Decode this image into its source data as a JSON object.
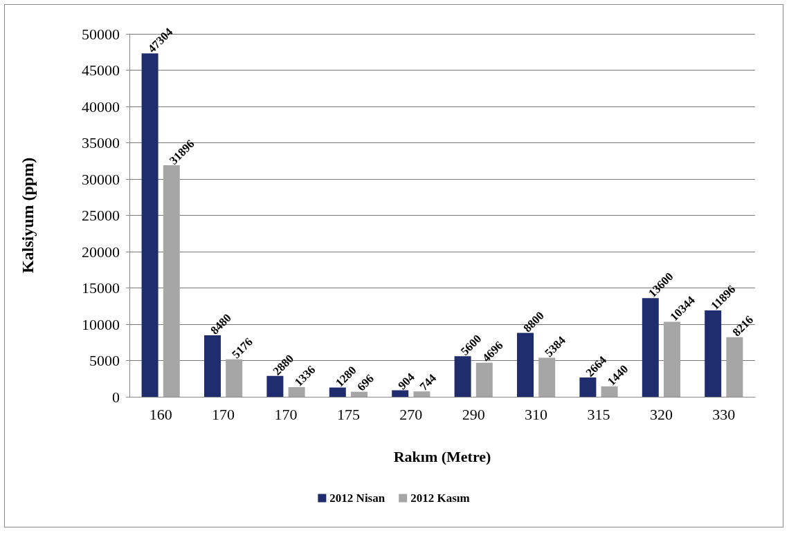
{
  "chart_data": {
    "type": "bar",
    "xlabel": "Rakım (Metre)",
    "ylabel": "Kalsiyum (ppm)",
    "categories": [
      "160",
      "170",
      "170",
      "175",
      "270",
      "290",
      "310",
      "315",
      "320",
      "330"
    ],
    "series": [
      {
        "name": "2012 Nisan",
        "color": "#1f2d6e",
        "values": [
          47304,
          8480,
          2880,
          1280,
          904,
          5600,
          8800,
          2664,
          13600,
          11896
        ]
      },
      {
        "name": "2012 Kasım",
        "color": "#a6a6a6",
        "values": [
          31896,
          5176,
          1336,
          696,
          744,
          4696,
          5384,
          1440,
          10344,
          8216
        ]
      }
    ],
    "ylim": [
      0,
      50000
    ],
    "yticks": [
      0,
      5000,
      10000,
      15000,
      20000,
      25000,
      30000,
      35000,
      40000,
      45000,
      50000
    ],
    "grid": "y",
    "legend": "bottom",
    "data_labels": true
  }
}
